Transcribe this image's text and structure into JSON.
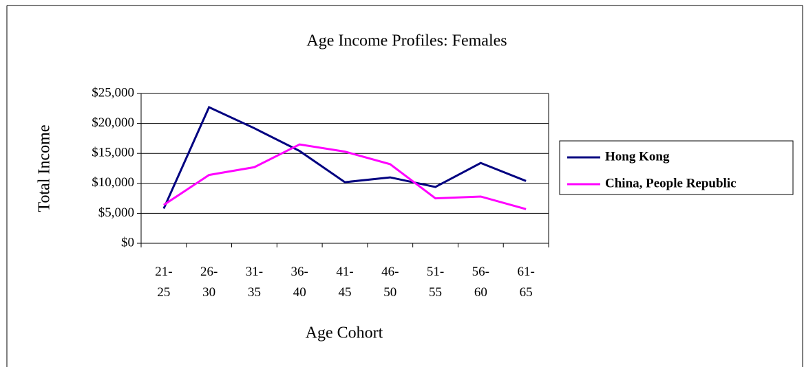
{
  "chart_data": {
    "type": "line",
    "title": "Age Income Profiles: Females",
    "x_label": "Age Cohort",
    "y_label": "Total Income",
    "categories": [
      "21-25",
      "26-30",
      "31-35",
      "36-40",
      "41-45",
      "46-50",
      "51-55",
      "56-60",
      "61-65"
    ],
    "series": [
      {
        "name": "Hong Kong",
        "color": "#000080",
        "values": [
          5800,
          22700,
          19200,
          15400,
          10200,
          11000,
          9400,
          13400,
          10400
        ]
      },
      {
        "name": "China, People Republic",
        "color": "#ff00ff",
        "values": [
          6400,
          11400,
          12700,
          16500,
          15300,
          13200,
          7500,
          7800,
          5700
        ]
      }
    ],
    "ylim": [
      0,
      25000
    ],
    "yticks": [
      {
        "value": 0,
        "label": "$0"
      },
      {
        "value": 5000,
        "label": "$5,000"
      },
      {
        "value": 10000,
        "label": "$10,000"
      },
      {
        "value": 15000,
        "label": "$15,000"
      },
      {
        "value": 20000,
        "label": "$20,000"
      },
      {
        "value": 25000,
        "label": "$25,000"
      }
    ],
    "grid": true,
    "legend": "right"
  }
}
